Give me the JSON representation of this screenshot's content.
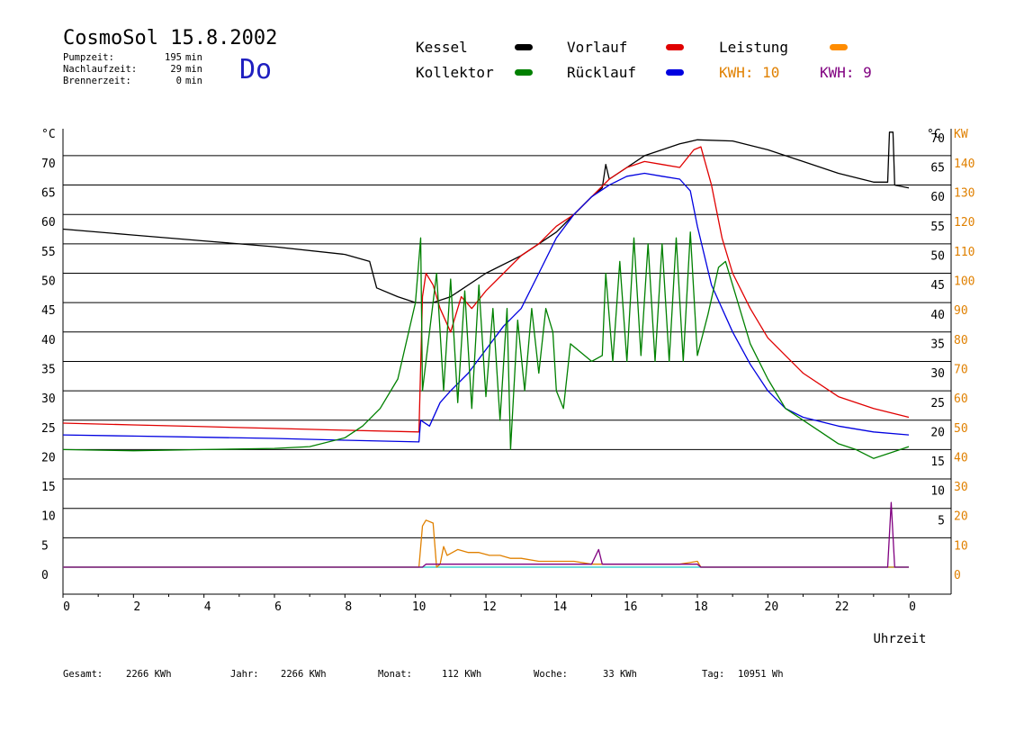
{
  "header": {
    "title": "CosmoSol 15.8.2002",
    "day": "Do",
    "stats": [
      {
        "label": "Pumpzeit:",
        "value": "195",
        "unit": "min"
      },
      {
        "label": "Nachlaufzeit:",
        "value": "29",
        "unit": "min"
      },
      {
        "label": "Brennerzeit:",
        "value": "0",
        "unit": "min"
      }
    ]
  },
  "legend": {
    "kessel": {
      "label": "Kessel",
      "color": "#000000"
    },
    "vorlauf": {
      "label": "Vorlauf",
      "color": "#e00000"
    },
    "leistung": {
      "label": "Leistung",
      "color": "#ff8c00"
    },
    "kollektor": {
      "label": "Kollektor",
      "color": "#008000"
    },
    "ruecklauf": {
      "label": "Rücklauf",
      "color": "#0000e0"
    },
    "kwh1": {
      "label": "KWH: 10",
      "color": "#e08000"
    },
    "kwh2": {
      "label": "KWH: 9",
      "color": "#800080"
    }
  },
  "footer": {
    "gesamt_label": "Gesamt:",
    "gesamt_value": "2266 KWh",
    "jahr_label": "Jahr:",
    "jahr_value": "2266 KWh",
    "monat_label": "Monat:",
    "monat_value": "112 KWh",
    "woche_label": "Woche:",
    "woche_value": "33 KWh",
    "tag_label": "Tag:",
    "tag_value": "10951 Wh"
  },
  "chart_data": {
    "type": "line",
    "xlabel": "Uhrzeit",
    "ylabel_left": "°C",
    "ylabel_right_temp": "°C",
    "ylabel_right_power": "KW",
    "x_ticks": [
      "0",
      "2",
      "4",
      "6",
      "8",
      "10",
      "12",
      "14",
      "16",
      "18",
      "20",
      "22",
      "0"
    ],
    "xlim": [
      0,
      24
    ],
    "ylim": [
      0,
      75
    ],
    "y_ticks": [
      0,
      5,
      10,
      15,
      20,
      25,
      30,
      35,
      40,
      45,
      50,
      55,
      60,
      65,
      70
    ],
    "y_ticks_right_temp": [
      5,
      10,
      15,
      20,
      25,
      30,
      35,
      40,
      45,
      50,
      55,
      60,
      65,
      70
    ],
    "y_ticks_right_power": [
      0,
      10,
      20,
      30,
      40,
      50,
      60,
      70,
      80,
      90,
      100,
      110,
      120,
      130,
      140
    ],
    "grid": true,
    "legend_placement": "top",
    "series": [
      {
        "name": "Kessel",
        "color": "#000000",
        "unit": "°C",
        "points": [
          [
            0,
            57.5
          ],
          [
            2,
            56.5
          ],
          [
            4,
            55.5
          ],
          [
            6,
            54.5
          ],
          [
            8,
            53.2
          ],
          [
            8.7,
            52
          ],
          [
            8.9,
            47.5
          ],
          [
            9.5,
            46
          ],
          [
            10,
            45
          ],
          [
            10.5,
            45
          ],
          [
            11,
            46
          ],
          [
            12,
            50
          ],
          [
            13,
            53
          ],
          [
            14,
            57
          ],
          [
            14.5,
            60
          ],
          [
            15,
            63
          ],
          [
            15.3,
            64.5
          ],
          [
            15.4,
            68.5
          ],
          [
            15.5,
            66
          ],
          [
            16,
            68
          ],
          [
            16.5,
            70
          ],
          [
            17,
            71
          ],
          [
            17.5,
            72
          ],
          [
            18,
            72.7
          ],
          [
            19,
            72.5
          ],
          [
            20,
            71
          ],
          [
            21,
            69
          ],
          [
            22,
            67
          ],
          [
            23,
            65.5
          ],
          [
            23.4,
            65.5
          ],
          [
            23.45,
            74
          ],
          [
            23.55,
            74
          ],
          [
            23.6,
            65
          ],
          [
            24,
            64.5
          ]
        ]
      },
      {
        "name": "Vorlauf",
        "color": "#e00000",
        "unit": "°C",
        "points": [
          [
            0,
            24.5
          ],
          [
            2,
            24.2
          ],
          [
            4,
            23.9
          ],
          [
            6,
            23.6
          ],
          [
            8,
            23.3
          ],
          [
            10.1,
            23
          ],
          [
            10.2,
            46
          ],
          [
            10.3,
            50
          ],
          [
            10.5,
            48
          ],
          [
            10.7,
            44
          ],
          [
            11,
            40
          ],
          [
            11.3,
            46
          ],
          [
            11.6,
            44
          ],
          [
            12,
            47
          ],
          [
            12.5,
            50
          ],
          [
            13,
            53
          ],
          [
            13.5,
            55
          ],
          [
            14,
            58
          ],
          [
            14.5,
            60
          ],
          [
            15,
            63
          ],
          [
            15.5,
            66
          ],
          [
            16,
            68
          ],
          [
            16.5,
            69
          ],
          [
            17,
            68.5
          ],
          [
            17.5,
            68
          ],
          [
            17.9,
            71
          ],
          [
            18.1,
            71.5
          ],
          [
            18.4,
            65
          ],
          [
            18.7,
            56
          ],
          [
            19,
            50
          ],
          [
            19.5,
            44
          ],
          [
            20,
            39
          ],
          [
            20.5,
            36
          ],
          [
            21,
            33
          ],
          [
            22,
            29
          ],
          [
            23,
            27
          ],
          [
            24,
            25.5
          ]
        ]
      },
      {
        "name": "Rücklauf",
        "color": "#0000e0",
        "unit": "°C",
        "points": [
          [
            0,
            22.5
          ],
          [
            2,
            22.3
          ],
          [
            4,
            22.1
          ],
          [
            6,
            21.9
          ],
          [
            8,
            21.6
          ],
          [
            10.1,
            21.3
          ],
          [
            10.15,
            25
          ],
          [
            10.4,
            24
          ],
          [
            10.7,
            28
          ],
          [
            11,
            30
          ],
          [
            11.5,
            33
          ],
          [
            12,
            37
          ],
          [
            12.5,
            41
          ],
          [
            13,
            44
          ],
          [
            13.5,
            50
          ],
          [
            14,
            56
          ],
          [
            14.5,
            60
          ],
          [
            15,
            63
          ],
          [
            15.5,
            65
          ],
          [
            16,
            66.5
          ],
          [
            16.5,
            67
          ],
          [
            17,
            66.5
          ],
          [
            17.5,
            66
          ],
          [
            17.8,
            64
          ],
          [
            18,
            58
          ],
          [
            18.4,
            48
          ],
          [
            19,
            40
          ],
          [
            19.5,
            34.5
          ],
          [
            20,
            30
          ],
          [
            20.5,
            27
          ],
          [
            21,
            25.5
          ],
          [
            22,
            24
          ],
          [
            23,
            23
          ],
          [
            24,
            22.5
          ]
        ]
      },
      {
        "name": "Kollektor",
        "color": "#008000",
        "unit": "°C",
        "points": [
          [
            0,
            20
          ],
          [
            2,
            19.8
          ],
          [
            4,
            20
          ],
          [
            6,
            20.2
          ],
          [
            7,
            20.5
          ],
          [
            8,
            22
          ],
          [
            8.5,
            24
          ],
          [
            9,
            27
          ],
          [
            9.5,
            32
          ],
          [
            10,
            45
          ],
          [
            10.15,
            56
          ],
          [
            10.2,
            30
          ],
          [
            10.4,
            40
          ],
          [
            10.6,
            50
          ],
          [
            10.8,
            30
          ],
          [
            11,
            49
          ],
          [
            11.2,
            28
          ],
          [
            11.4,
            47
          ],
          [
            11.6,
            27
          ],
          [
            11.8,
            48
          ],
          [
            12,
            29
          ],
          [
            12.2,
            44
          ],
          [
            12.4,
            25
          ],
          [
            12.6,
            44
          ],
          [
            12.7,
            20
          ],
          [
            12.9,
            42
          ],
          [
            13.1,
            30
          ],
          [
            13.3,
            44
          ],
          [
            13.5,
            33
          ],
          [
            13.7,
            44
          ],
          [
            13.9,
            40
          ],
          [
            14,
            30
          ],
          [
            14.2,
            27
          ],
          [
            14.4,
            38
          ],
          [
            14.6,
            37
          ],
          [
            15,
            35
          ],
          [
            15.3,
            36
          ],
          [
            15.4,
            50
          ],
          [
            15.6,
            35
          ],
          [
            15.8,
            52
          ],
          [
            16,
            35
          ],
          [
            16.2,
            56
          ],
          [
            16.4,
            36
          ],
          [
            16.6,
            55
          ],
          [
            16.8,
            35
          ],
          [
            17,
            55
          ],
          [
            17.2,
            35
          ],
          [
            17.4,
            56
          ],
          [
            17.6,
            35
          ],
          [
            17.8,
            57
          ],
          [
            18,
            36
          ],
          [
            18.3,
            43
          ],
          [
            18.6,
            51
          ],
          [
            18.8,
            52
          ],
          [
            19,
            48
          ],
          [
            19.5,
            38
          ],
          [
            20,
            32
          ],
          [
            20.5,
            27
          ],
          [
            21,
            25
          ],
          [
            21.5,
            23
          ],
          [
            22,
            21
          ],
          [
            22.5,
            20
          ],
          [
            23,
            18.5
          ],
          [
            23.5,
            19.5
          ],
          [
            24,
            20.5
          ]
        ]
      },
      {
        "name": "Leistung",
        "color": "#e08000",
        "unit": "KW",
        "points": [
          [
            0,
            0
          ],
          [
            10.1,
            0
          ],
          [
            10.2,
            14
          ],
          [
            10.3,
            16
          ],
          [
            10.5,
            15
          ],
          [
            10.6,
            0
          ],
          [
            10.7,
            1
          ],
          [
            10.8,
            7
          ],
          [
            10.9,
            4
          ],
          [
            11.2,
            6
          ],
          [
            11.5,
            5
          ],
          [
            11.8,
            5
          ],
          [
            12.1,
            4
          ],
          [
            12.4,
            4
          ],
          [
            12.7,
            3
          ],
          [
            13,
            3
          ],
          [
            13.5,
            2
          ],
          [
            14,
            2
          ],
          [
            14.5,
            2
          ],
          [
            15,
            1
          ],
          [
            15.5,
            1
          ],
          [
            16,
            1
          ],
          [
            16.5,
            1
          ],
          [
            17,
            1
          ],
          [
            17.5,
            1
          ],
          [
            18,
            2
          ],
          [
            18.1,
            0
          ],
          [
            24,
            0
          ]
        ]
      },
      {
        "name": "KWH 9",
        "color": "#800080",
        "unit": "KW",
        "points": [
          [
            0,
            0
          ],
          [
            10.2,
            0
          ],
          [
            10.3,
            1
          ],
          [
            11,
            1
          ],
          [
            12,
            1
          ],
          [
            13,
            1
          ],
          [
            14,
            1
          ],
          [
            15,
            1
          ],
          [
            15.2,
            6
          ],
          [
            15.3,
            1
          ],
          [
            16,
            1
          ],
          [
            17,
            1
          ],
          [
            18,
            1
          ],
          [
            18.1,
            0
          ],
          [
            23.4,
            0
          ],
          [
            23.5,
            22
          ],
          [
            23.6,
            0
          ],
          [
            24,
            0
          ]
        ]
      }
    ],
    "baseline": {
      "name": "",
      "color": "#40d0d0",
      "value": 0
    }
  }
}
